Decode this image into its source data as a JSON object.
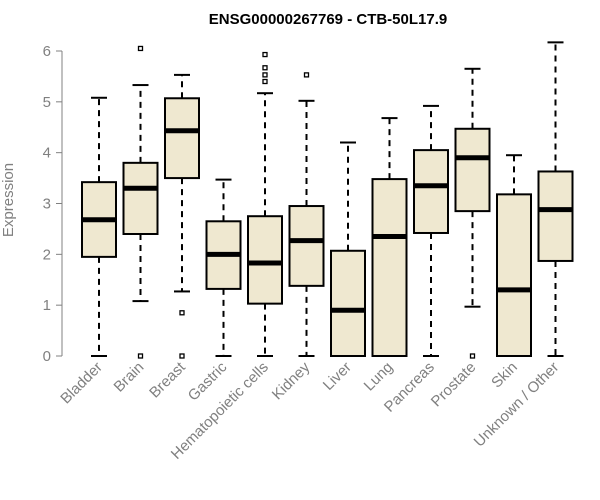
{
  "chart_data": {
    "type": "boxplot",
    "title": "ENSG00000267769 - CTB-50L17.9",
    "xlabel": "",
    "ylabel": "Expression",
    "ylim": [
      0,
      6
    ],
    "yticks": [
      0,
      1,
      2,
      3,
      4,
      5,
      6
    ],
    "box_fill": "#efe8d0",
    "box_stroke": "#000000",
    "categories": [
      "Bladder",
      "Brain",
      "Breast",
      "Gastric",
      "Hematopoietic cells",
      "Kidney",
      "Liver",
      "Lung",
      "Pancreas",
      "Prostate",
      "Skin",
      "Unknown / Other"
    ],
    "boxes": [
      {
        "min": 0.0,
        "q1": 1.95,
        "median": 2.68,
        "q3": 3.42,
        "max": 5.08,
        "outliers": []
      },
      {
        "min": 1.08,
        "q1": 2.4,
        "median": 3.3,
        "q3": 3.8,
        "max": 5.33,
        "outliers": [
          0.0,
          6.05
        ]
      },
      {
        "min": 1.27,
        "q1": 3.5,
        "median": 4.43,
        "q3": 5.07,
        "max": 5.53,
        "outliers": [
          0.0,
          0.85
        ]
      },
      {
        "min": 0.0,
        "q1": 1.32,
        "median": 2.0,
        "q3": 2.65,
        "max": 3.47,
        "outliers": []
      },
      {
        "min": 0.0,
        "q1": 1.03,
        "median": 1.83,
        "q3": 2.75,
        "max": 5.17,
        "outliers": [
          5.4,
          5.53,
          5.67,
          5.93
        ]
      },
      {
        "min": 0.0,
        "q1": 1.38,
        "median": 2.27,
        "q3": 2.95,
        "max": 5.02,
        "outliers": [
          5.53
        ]
      },
      {
        "min": 0.0,
        "q1": 0.0,
        "median": 0.9,
        "q3": 2.07,
        "max": 4.2,
        "outliers": []
      },
      {
        "min": 0.0,
        "q1": 0.0,
        "median": 2.35,
        "q3": 3.48,
        "max": 4.68,
        "outliers": []
      },
      {
        "min": 0.0,
        "q1": 2.42,
        "median": 3.35,
        "q3": 4.05,
        "max": 4.92,
        "outliers": []
      },
      {
        "min": 0.97,
        "q1": 2.85,
        "median": 3.9,
        "q3": 4.47,
        "max": 5.65,
        "outliers": [
          0.0
        ]
      },
      {
        "min": 0.0,
        "q1": 0.0,
        "median": 1.3,
        "q3": 3.18,
        "max": 3.95,
        "outliers": []
      },
      {
        "min": 0.0,
        "q1": 1.87,
        "median": 2.88,
        "q3": 3.63,
        "max": 6.17,
        "outliers": []
      }
    ]
  }
}
